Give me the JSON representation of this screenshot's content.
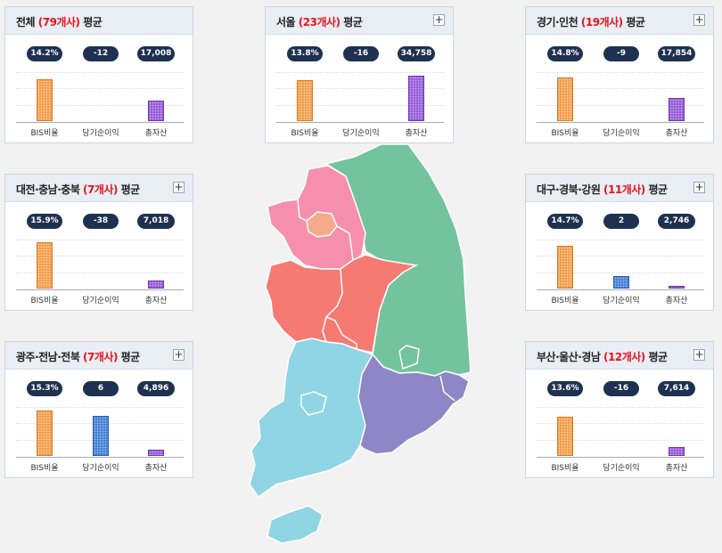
{
  "cards": [
    {
      "id": "all",
      "region": "전체",
      "count": "(79개사)",
      "suffix": "평균",
      "plus": false,
      "values": [
        {
          "label": "BIS비율",
          "value": "14.2%",
          "bar": 0.71
        },
        {
          "label": "당기순이익",
          "value": "-12",
          "bar": 0
        },
        {
          "label": "총자산",
          "value": "17,008",
          "bar": 0.35
        }
      ]
    },
    {
      "id": "seoul",
      "region": "서울",
      "count": "(23개사)",
      "suffix": "평균",
      "plus": true,
      "values": [
        {
          "label": "BIS비율",
          "value": "13.8%",
          "bar": 0.69
        },
        {
          "label": "당기순이익",
          "value": "-16",
          "bar": 0
        },
        {
          "label": "총자산",
          "value": "34,758",
          "bar": 0.78
        }
      ]
    },
    {
      "id": "gyeonggi",
      "region": "경기·인천",
      "count": "(19개사)",
      "suffix": "평균",
      "plus": true,
      "values": [
        {
          "label": "BIS비율",
          "value": "14.8%",
          "bar": 0.74
        },
        {
          "label": "당기순이익",
          "value": "-9",
          "bar": 0
        },
        {
          "label": "총자산",
          "value": "17,854",
          "bar": 0.4
        }
      ]
    },
    {
      "id": "daejeon",
      "region": "대전·충남·충북",
      "count": "(7개사)",
      "suffix": "평균",
      "plus": true,
      "values": [
        {
          "label": "BIS비율",
          "value": "15.9%",
          "bar": 0.79
        },
        {
          "label": "당기순이익",
          "value": "-38",
          "bar": 0
        },
        {
          "label": "총자산",
          "value": "7,018",
          "bar": 0.13
        }
      ]
    },
    {
      "id": "daegu",
      "region": "대구·경북·강원",
      "count": "(11개사)",
      "suffix": "평균",
      "plus": true,
      "values": [
        {
          "label": "BIS비율",
          "value": "14.7%",
          "bar": 0.73
        },
        {
          "label": "당기순이익",
          "value": "2",
          "bar": 0.21
        },
        {
          "label": "총자산",
          "value": "2,746",
          "bar": 0.05
        }
      ]
    },
    {
      "id": "gwangju",
      "region": "광주·전남·전북",
      "count": "(7개사)",
      "suffix": "평균",
      "plus": true,
      "values": [
        {
          "label": "BIS비율",
          "value": "15.3%",
          "bar": 0.77
        },
        {
          "label": "당기순이익",
          "value": "6",
          "bar": 0.68
        },
        {
          "label": "총자산",
          "value": "4,896",
          "bar": 0.1
        }
      ]
    },
    {
      "id": "busan",
      "region": "부산·울산·경남",
      "count": "(12개사)",
      "suffix": "평균",
      "plus": true,
      "values": [
        {
          "label": "BIS비율",
          "value": "13.6%",
          "bar": 0.67
        },
        {
          "label": "당기순이익",
          "value": "-16",
          "bar": 0
        },
        {
          "label": "총자산",
          "value": "7,614",
          "bar": 0.15
        }
      ]
    }
  ],
  "map_colors": {
    "seoul": "#f7a98c",
    "gyeonggi": "#f58fad",
    "gangwon_gyeongbuk": "#74c39f",
    "chungcheong": "#f47a72",
    "jeolla": "#8fd5e3",
    "gyeongnam": "#8e86c6"
  }
}
